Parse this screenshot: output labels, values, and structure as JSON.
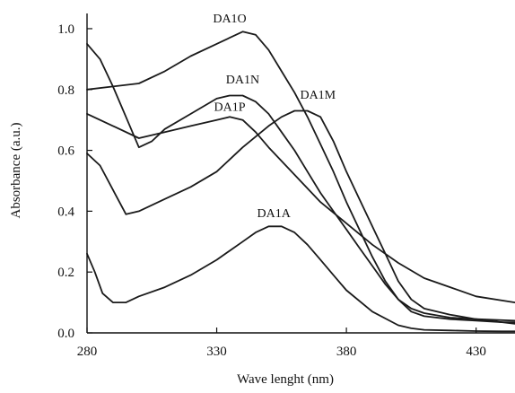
{
  "chart_data": {
    "type": "line",
    "title": "",
    "xlabel": "Wave lenght (nm)",
    "ylabel": "Absorbance (a.u.)",
    "xlim": [
      280,
      445
    ],
    "ylim": [
      0,
      1.05
    ],
    "xticks": [
      280,
      330,
      380,
      430
    ],
    "yticks": [
      0.0,
      0.2,
      0.4,
      0.6,
      0.8,
      1.0
    ],
    "xtick_labels": [
      "280",
      "330",
      "380",
      "430"
    ],
    "ytick_labels": [
      "0.0",
      "0.2",
      "0.4",
      "0.6",
      "0.8",
      "1.0"
    ],
    "grid": false,
    "legend": "none",
    "series": [
      {
        "name": "DA1O",
        "label_at": [
          335,
          1.02
        ],
        "x": [
          280,
          290,
          300,
          310,
          320,
          330,
          335,
          340,
          345,
          350,
          355,
          360,
          365,
          370,
          375,
          380,
          385,
          390,
          395,
          400,
          405,
          410,
          420,
          430,
          440,
          445
        ],
        "y": [
          0.8,
          0.81,
          0.82,
          0.86,
          0.91,
          0.95,
          0.97,
          0.99,
          0.98,
          0.93,
          0.86,
          0.79,
          0.71,
          0.62,
          0.53,
          0.43,
          0.34,
          0.25,
          0.17,
          0.11,
          0.07,
          0.055,
          0.045,
          0.04,
          0.035,
          0.035
        ]
      },
      {
        "name": "DA1N",
        "label_at": [
          340,
          0.82
        ],
        "x": [
          280,
          285,
          290,
          295,
          300,
          305,
          310,
          320,
          330,
          335,
          340,
          345,
          350,
          355,
          360,
          365,
          370,
          375,
          380,
          385,
          390,
          395,
          400,
          405,
          410,
          420,
          430,
          445
        ],
        "y": [
          0.95,
          0.9,
          0.81,
          0.71,
          0.61,
          0.63,
          0.67,
          0.72,
          0.77,
          0.78,
          0.78,
          0.76,
          0.72,
          0.66,
          0.6,
          0.53,
          0.46,
          0.4,
          0.34,
          0.28,
          0.22,
          0.16,
          0.11,
          0.08,
          0.065,
          0.05,
          0.045,
          0.04
        ]
      },
      {
        "name": "DA1P",
        "label_at": [
          335,
          0.73
        ],
        "x": [
          280,
          290,
          300,
          310,
          320,
          330,
          335,
          340,
          345,
          350,
          360,
          370,
          380,
          390,
          400,
          410,
          420,
          430,
          445
        ],
        "y": [
          0.72,
          0.68,
          0.64,
          0.66,
          0.68,
          0.7,
          0.71,
          0.7,
          0.66,
          0.61,
          0.52,
          0.43,
          0.36,
          0.29,
          0.23,
          0.18,
          0.15,
          0.12,
          0.1
        ]
      },
      {
        "name": "DA1M",
        "label_at": [
          369,
          0.77
        ],
        "x": [
          280,
          285,
          290,
          295,
          300,
          310,
          320,
          330,
          340,
          350,
          355,
          360,
          365,
          370,
          375,
          380,
          385,
          390,
          395,
          400,
          405,
          410,
          420,
          430,
          440,
          445
        ],
        "y": [
          0.59,
          0.55,
          0.47,
          0.39,
          0.4,
          0.44,
          0.48,
          0.53,
          0.61,
          0.68,
          0.71,
          0.73,
          0.73,
          0.71,
          0.63,
          0.53,
          0.44,
          0.35,
          0.26,
          0.17,
          0.11,
          0.08,
          0.06,
          0.045,
          0.035,
          0.03
        ]
      },
      {
        "name": "DA1A",
        "label_at": [
          352,
          0.38
        ],
        "x": [
          280,
          283,
          286,
          290,
          295,
          300,
          310,
          320,
          330,
          340,
          345,
          350,
          355,
          360,
          365,
          370,
          375,
          380,
          390,
          400,
          405,
          410,
          420,
          430,
          440,
          445
        ],
        "y": [
          0.26,
          0.2,
          0.13,
          0.1,
          0.1,
          0.12,
          0.15,
          0.19,
          0.24,
          0.3,
          0.33,
          0.35,
          0.35,
          0.33,
          0.29,
          0.24,
          0.19,
          0.14,
          0.07,
          0.025,
          0.015,
          0.01,
          0.008,
          0.006,
          0.005,
          0.005
        ]
      }
    ]
  }
}
